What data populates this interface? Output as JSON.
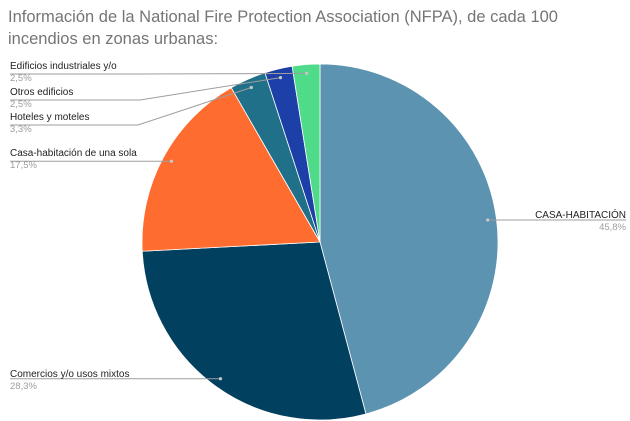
{
  "chart_data": {
    "type": "pie",
    "title": "Información de la National Fire Protection Association (NFPA), de cada 100 incendios en zonas urbanas:",
    "slices": [
      {
        "label": "CASA-HABITACIÓN",
        "value": 45.8,
        "display": "45,8%",
        "color": "#5b93b0"
      },
      {
        "label": "Comercios y/o usos mixtos",
        "value": 28.3,
        "display": "28,3%",
        "color": "#02405f"
      },
      {
        "label": "Casa-habitación de una sola",
        "value": 17.5,
        "display": "17,5%",
        "color": "#ff6c2f"
      },
      {
        "label": "Hoteles y moteles",
        "value": 3.3,
        "display": "3,3%",
        "color": "#1f7088"
      },
      {
        "label": "Otros edificios",
        "value": 2.5,
        "display": "2,5%",
        "color": "#1c3fa8"
      },
      {
        "label": "Edificios industriales y/o",
        "value": 2.5,
        "display": "2,5%",
        "color": "#4fdb8a"
      }
    ],
    "legend": "none"
  }
}
